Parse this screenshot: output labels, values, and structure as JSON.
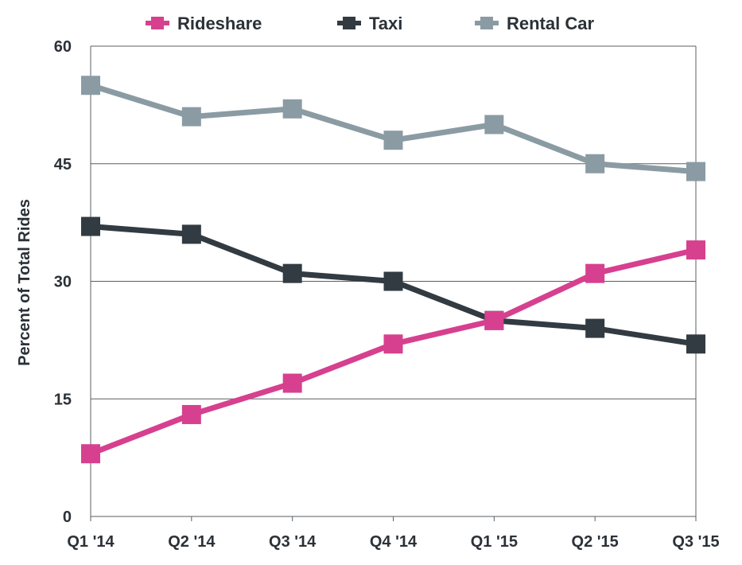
{
  "chart_data": {
    "type": "line",
    "title": "",
    "xlabel": "",
    "ylabel": "Percent of Total Rides",
    "categories": [
      "Q1 '14",
      "Q2 '14",
      "Q3 '14",
      "Q4 '14",
      "Q1 '15",
      "Q2 '15",
      "Q3 '15"
    ],
    "ylim": [
      0,
      60
    ],
    "yticks": [
      "0",
      "15",
      "30",
      "45",
      "60"
    ],
    "grid": true,
    "legend_position": "top",
    "series": [
      {
        "name": "Rideshare",
        "color": "#d6408f",
        "values": [
          8,
          13,
          17,
          22,
          25,
          31,
          34
        ]
      },
      {
        "name": "Taxi",
        "color": "#323b42",
        "values": [
          37,
          36,
          31,
          30,
          25,
          24,
          22
        ]
      },
      {
        "name": "Rental Car",
        "color": "#8b9ba4",
        "values": [
          55,
          51,
          52,
          48,
          50,
          45,
          44
        ]
      }
    ]
  }
}
